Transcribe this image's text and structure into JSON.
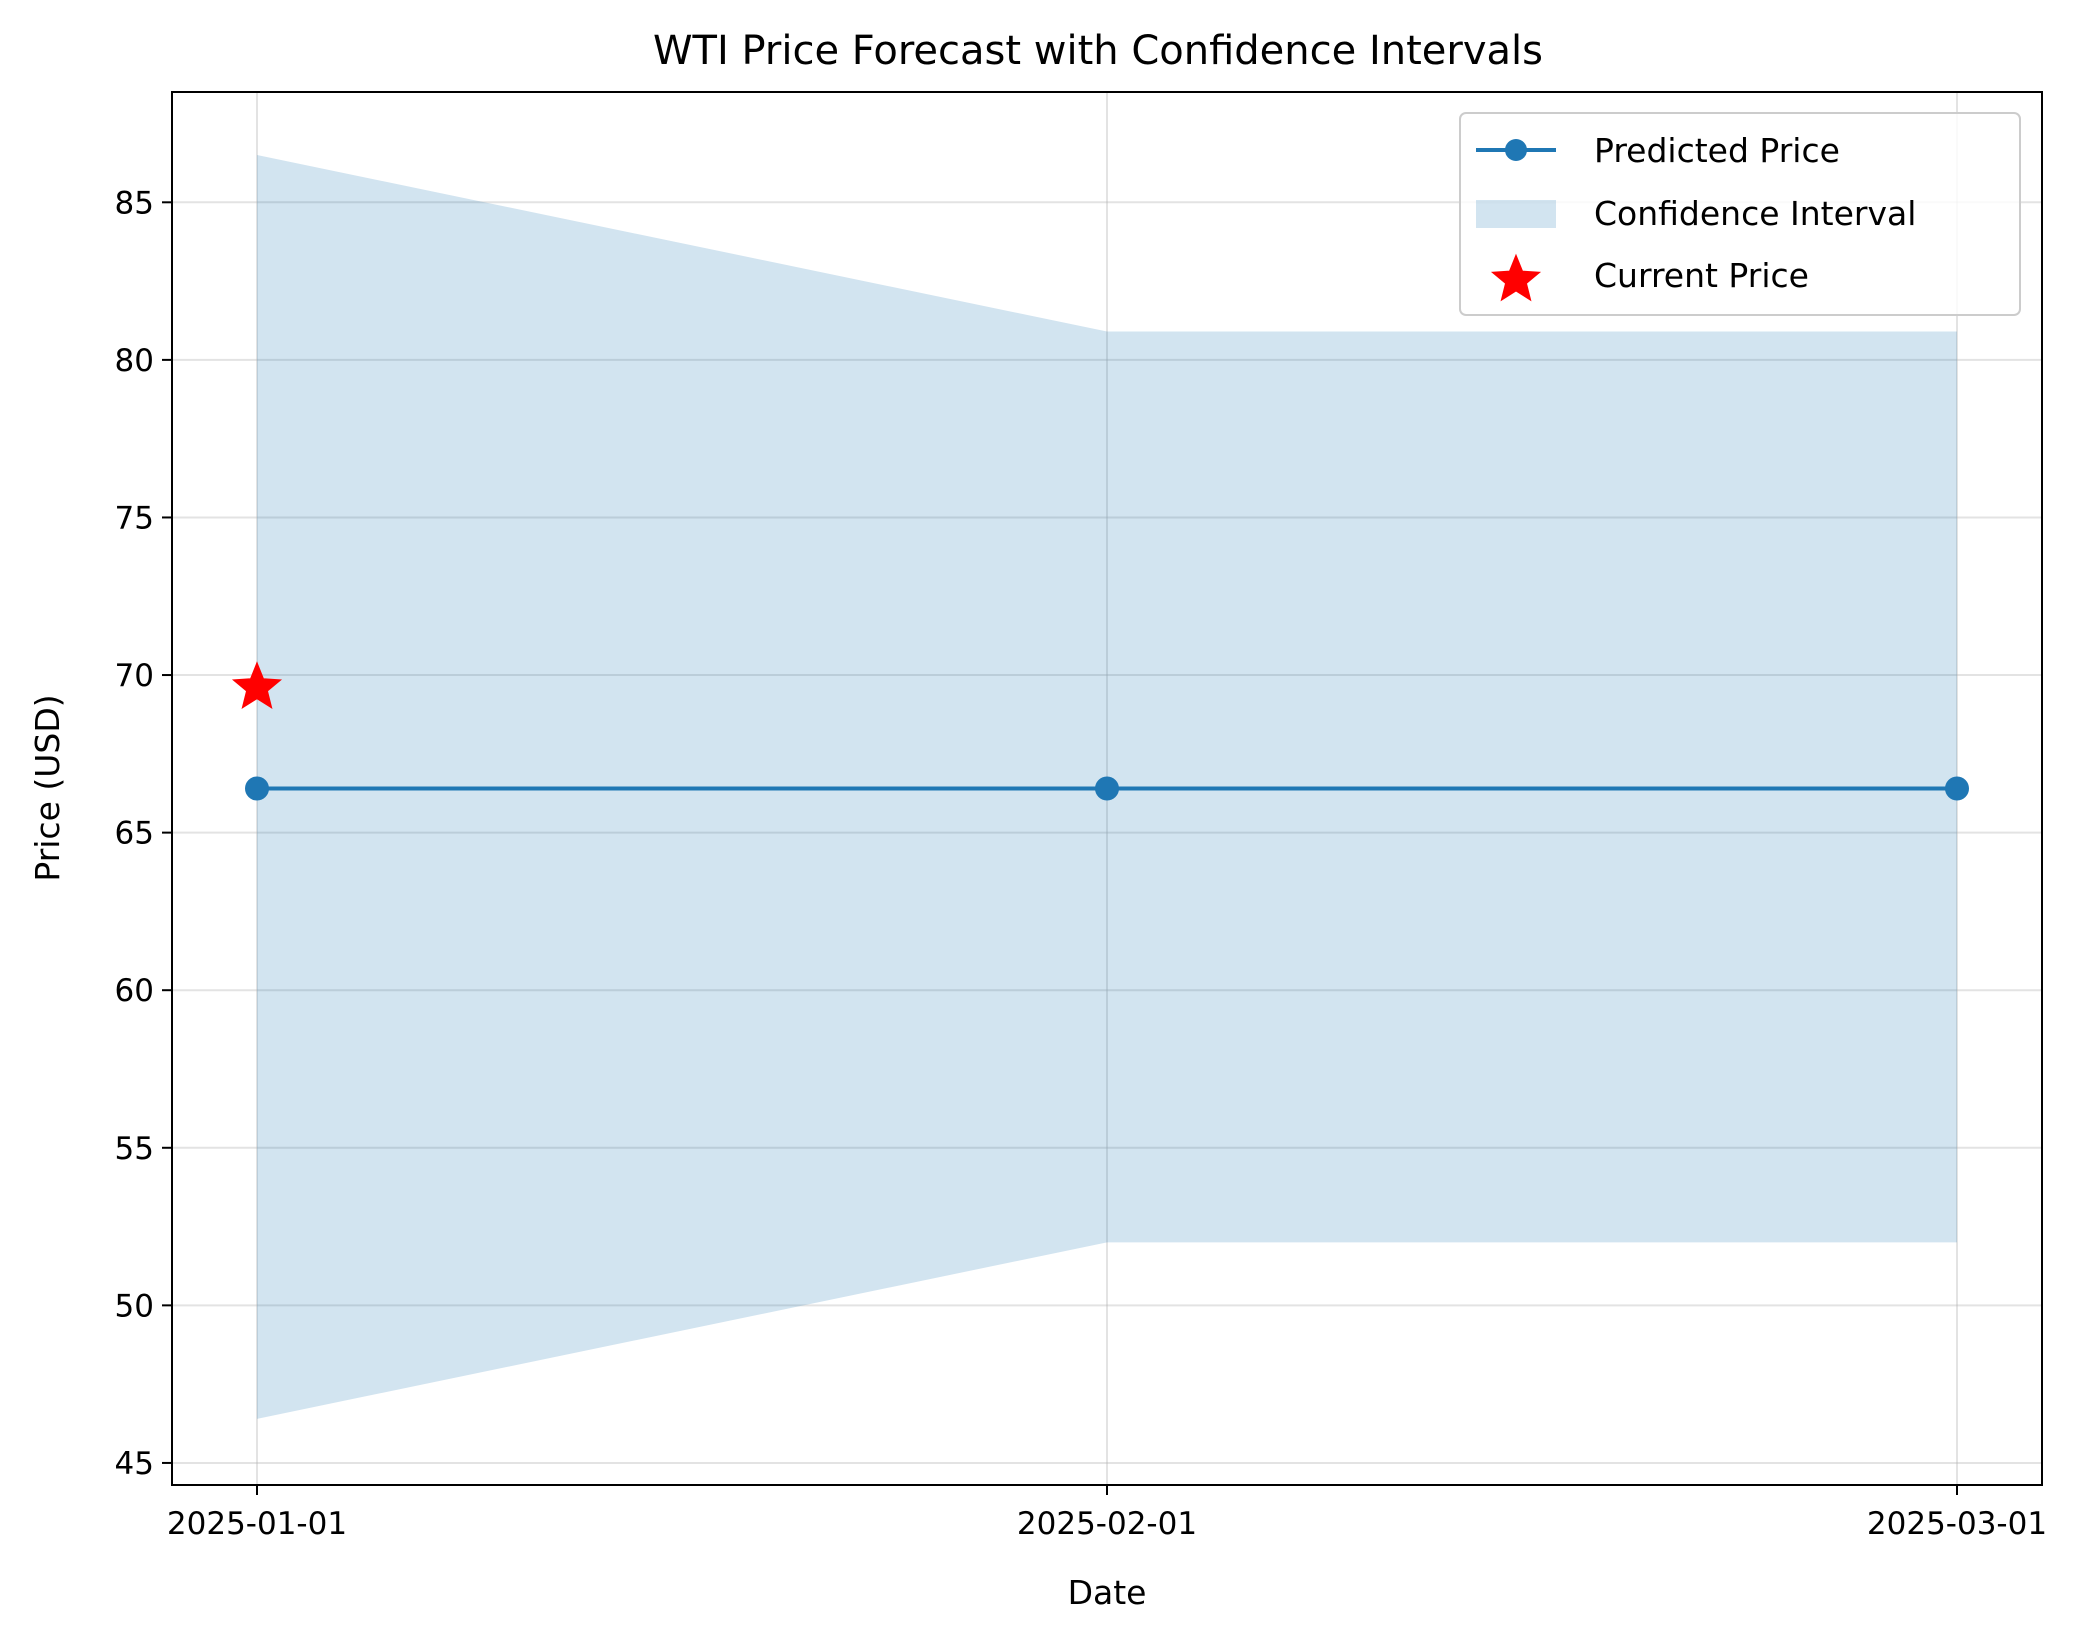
{
  "chart_data": {
    "type": "line",
    "title": "WTI Price Forecast with Confidence Intervals",
    "xlabel": "Date",
    "ylabel": "Price (USD)",
    "x": [
      "2025-01-01",
      "2025-02-01",
      "2025-03-01"
    ],
    "x_tick_labels": [
      "2025-01-01",
      "2025-02-01",
      "2025-03-01"
    ],
    "y_ticks": [
      45,
      50,
      55,
      60,
      65,
      70,
      75,
      80,
      85
    ],
    "ylim": [
      44.3,
      88.5
    ],
    "grid": true,
    "legend_position": "top-right",
    "series": [
      {
        "name": "Predicted Price",
        "kind": "line-marker",
        "values": [
          66.4,
          66.4,
          66.4
        ],
        "color": "#1f77b4"
      }
    ],
    "confidence_interval": {
      "name": "Confidence Interval",
      "lower": [
        46.4,
        52.0,
        52.0
      ],
      "upper": [
        86.5,
        80.9,
        80.9
      ],
      "color": "#1f77b4"
    },
    "current_price": {
      "name": "Current Price",
      "x": "2025-01-01",
      "value": 69.6,
      "color": "#ff0000",
      "marker": "star"
    }
  }
}
